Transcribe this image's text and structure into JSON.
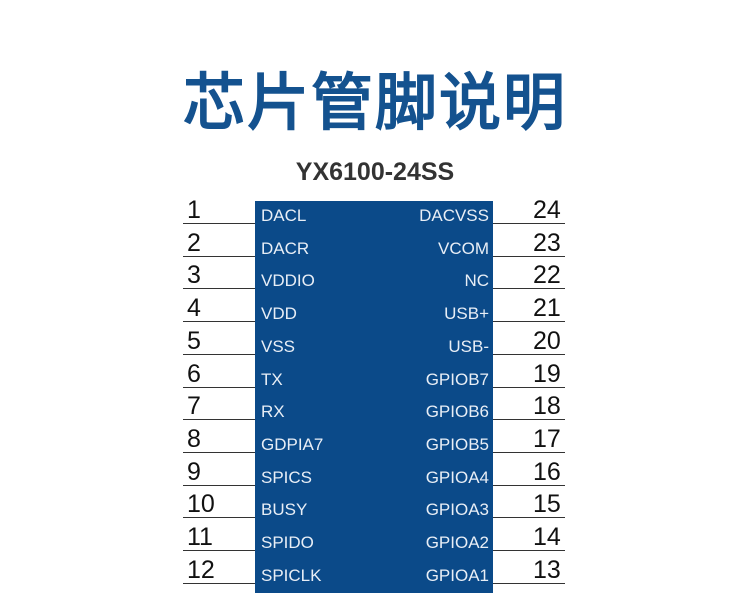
{
  "title": "芯片管脚说明",
  "chip": {
    "name": "YX6100-24SS",
    "color": "#0b4a89",
    "left_pins": [
      {
        "num": "1",
        "label": "DACL"
      },
      {
        "num": "2",
        "label": "DACR"
      },
      {
        "num": "3",
        "label": "VDDIO"
      },
      {
        "num": "4",
        "label": "VDD"
      },
      {
        "num": "5",
        "label": "VSS"
      },
      {
        "num": "6",
        "label": "TX"
      },
      {
        "num": "7",
        "label": "RX"
      },
      {
        "num": "8",
        "label": "GDPIA7"
      },
      {
        "num": "9",
        "label": "SPICS"
      },
      {
        "num": "10",
        "label": "BUSY"
      },
      {
        "num": "11",
        "label": "SPIDO"
      },
      {
        "num": "12",
        "label": "SPICLK"
      }
    ],
    "right_pins": [
      {
        "num": "24",
        "label": "DACVSS"
      },
      {
        "num": "23",
        "label": "VCOM"
      },
      {
        "num": "22",
        "label": "NC"
      },
      {
        "num": "21",
        "label": "USB+"
      },
      {
        "num": "20",
        "label": "USB-"
      },
      {
        "num": "19",
        "label": "GPIOB7"
      },
      {
        "num": "18",
        "label": "GPIOB6"
      },
      {
        "num": "17",
        "label": "GPIOB5"
      },
      {
        "num": "16",
        "label": "GPIOA4"
      },
      {
        "num": "15",
        "label": "GPIOA3"
      },
      {
        "num": "14",
        "label": "GPIOA2"
      },
      {
        "num": "13",
        "label": "GPIOA1"
      }
    ]
  }
}
